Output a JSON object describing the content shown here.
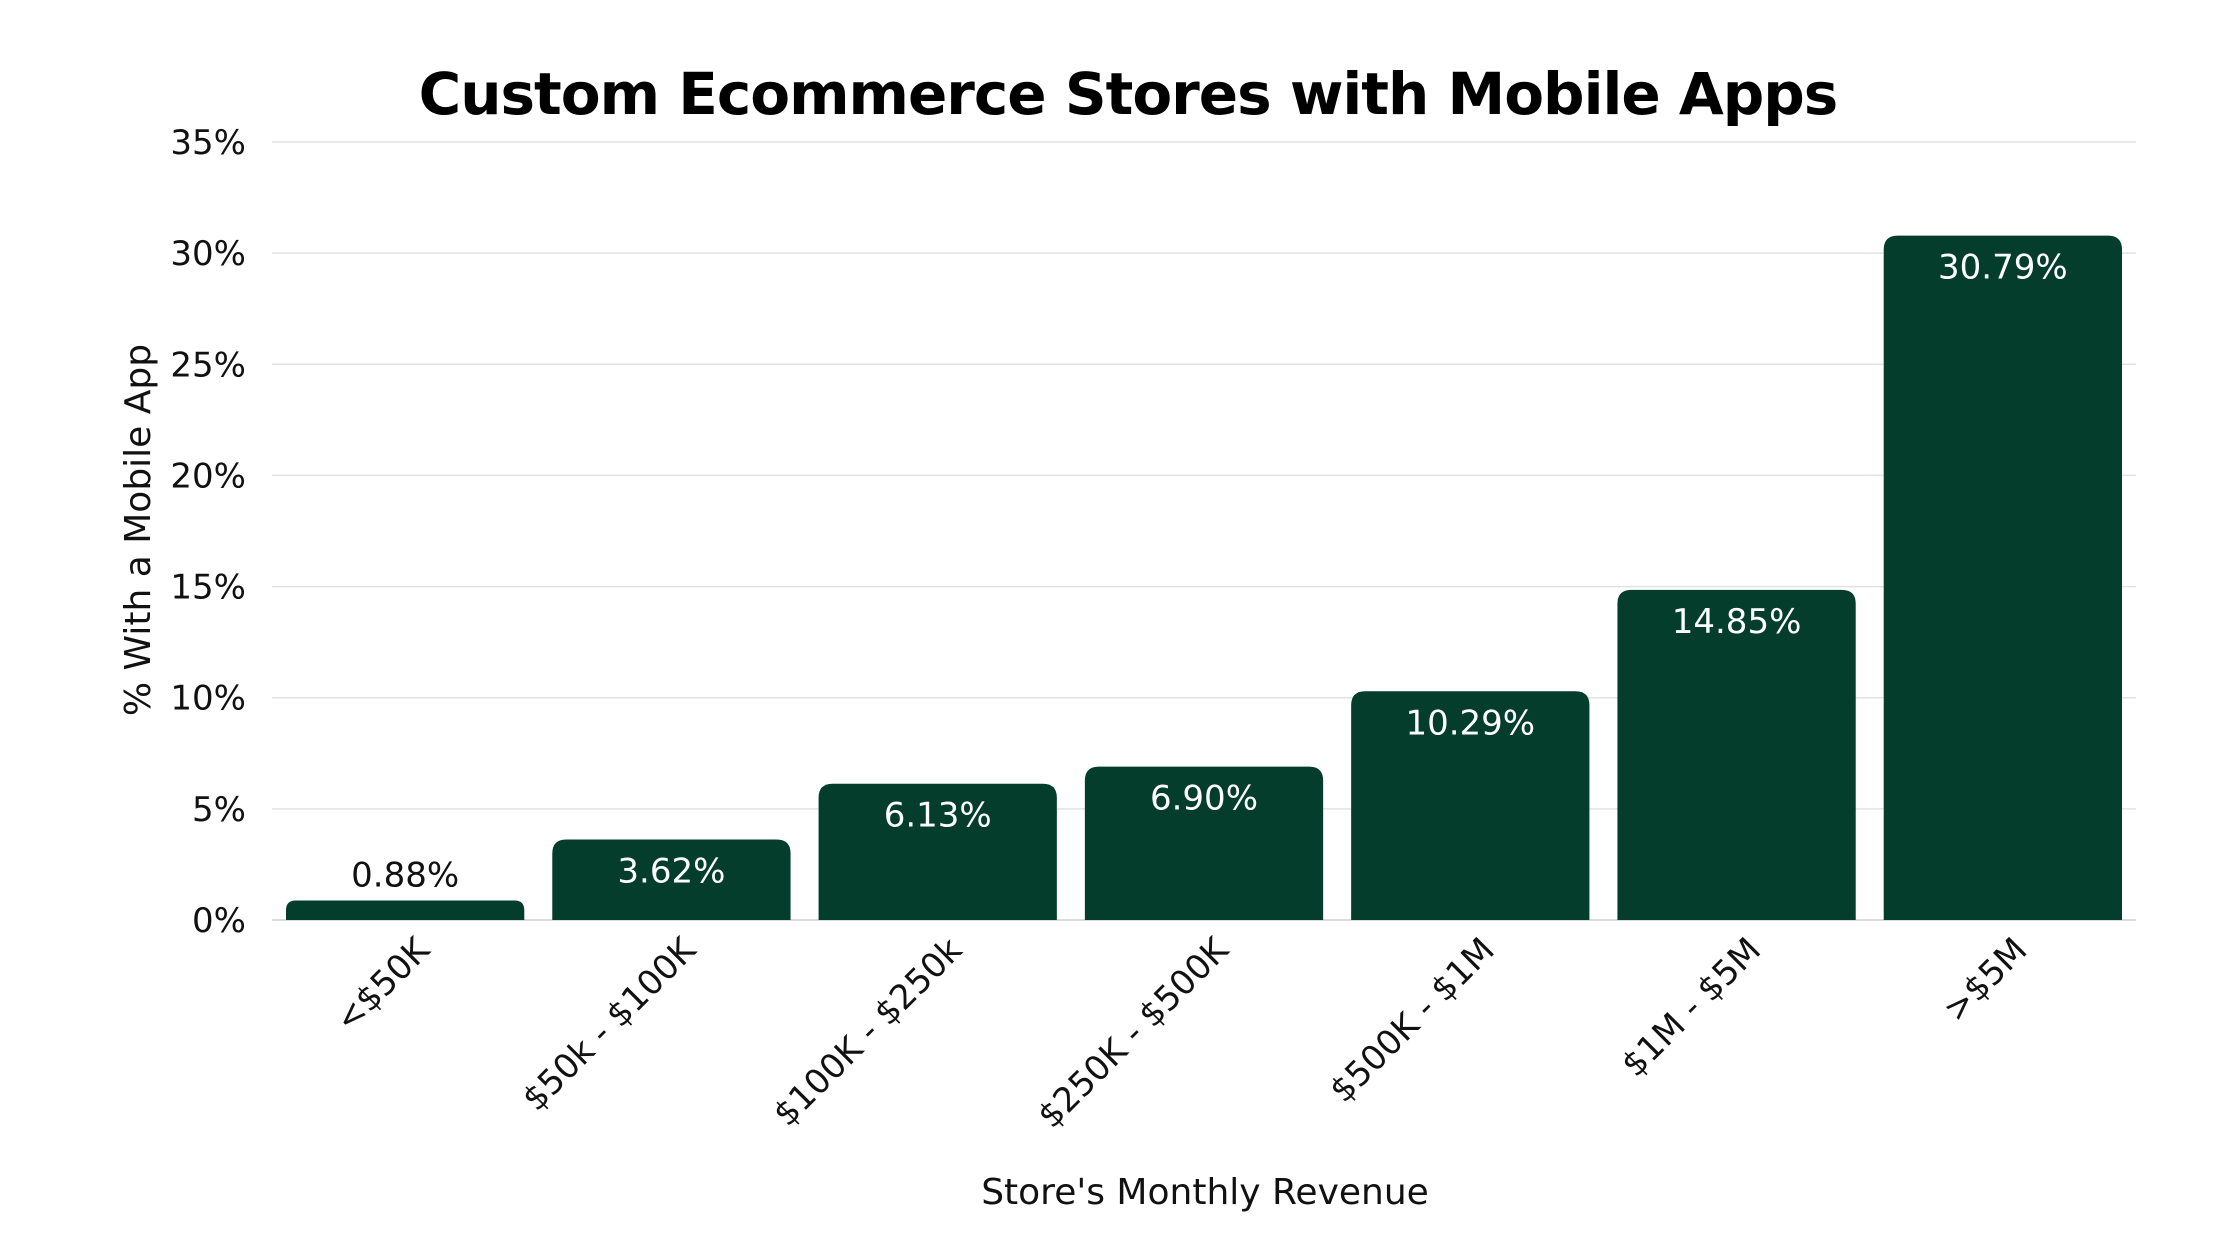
{
  "chart_data": {
    "type": "bar",
    "title": "Custom Ecommerce Stores with Mobile Apps",
    "xlabel": "Store's Monthly Revenue",
    "ylabel": "% With a Mobile App",
    "categories": [
      "<$50K",
      "$50k - $100K",
      "$100K - $250k",
      "$250K - $500K",
      "$500K - $1M",
      "$1M - $5M",
      ">$5M"
    ],
    "values": [
      0.88,
      3.62,
      6.13,
      6.9,
      10.29,
      14.85,
      30.79
    ],
    "value_labels": [
      "0.88%",
      "3.62%",
      "6.13%",
      "6.90%",
      "10.29%",
      "14.85%",
      "30.79%"
    ],
    "ylim": [
      0,
      35
    ],
    "yticks": [
      0,
      5,
      10,
      15,
      20,
      25,
      30,
      35
    ],
    "ytick_labels": [
      "0%",
      "5%",
      "10%",
      "15%",
      "20%",
      "25%",
      "30%",
      "35%"
    ],
    "grid": true,
    "legend": "none",
    "colors": {
      "bar": "#043d2c",
      "label_inside": "#ffffff",
      "label_outside": "#111111"
    }
  }
}
